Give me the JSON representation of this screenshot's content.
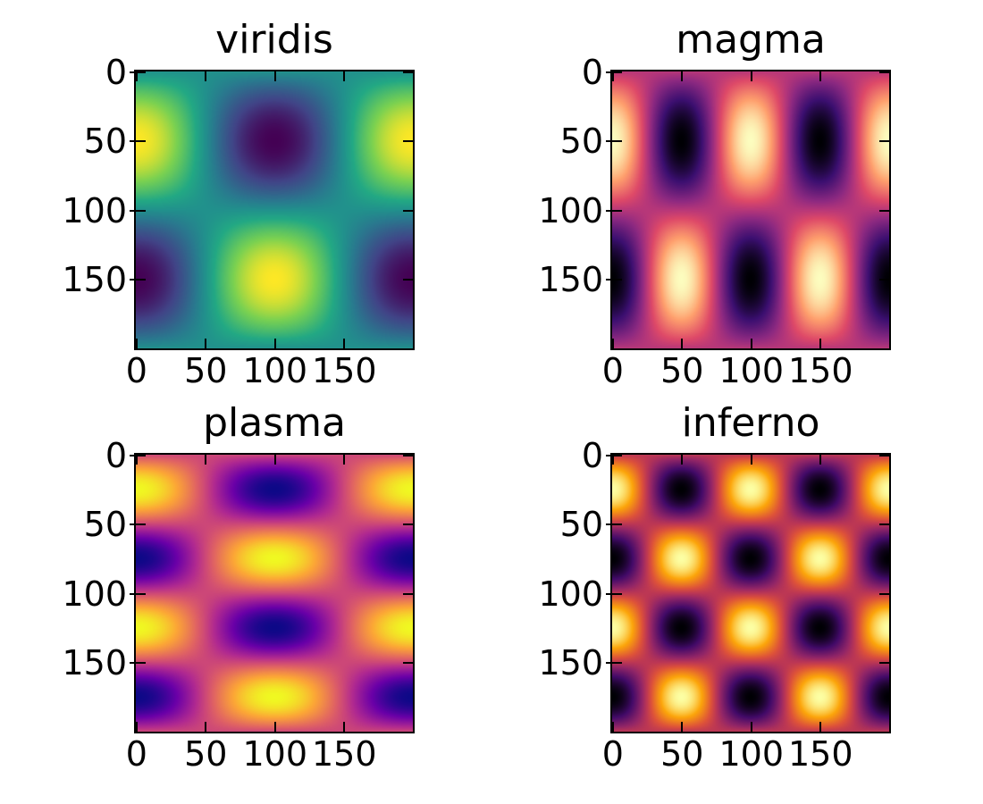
{
  "figure": {
    "background_color": "#ffffff",
    "frame_color": "#000000",
    "text_color": "#000000"
  },
  "chart_data": [
    {
      "type": "heatmap",
      "title": "viridis",
      "colormap": "viridis",
      "grid_size": [
        200,
        200
      ],
      "function": "cos(2*pi*fx*x/200) * sin(2*pi*fy*y/200)",
      "fx": 1,
      "fy": 1,
      "value_range": [
        -1,
        1
      ],
      "xlim": [
        -0.5,
        199.5
      ],
      "ylim": [
        199.5,
        -0.5
      ],
      "y_axis_inverted": true,
      "xticks": [
        0,
        50,
        100,
        150
      ],
      "yticks": [
        0,
        50,
        100,
        150
      ]
    },
    {
      "type": "heatmap",
      "title": "magma",
      "colormap": "magma",
      "grid_size": [
        200,
        200
      ],
      "function": "cos(2*pi*fx*x/200) * sin(2*pi*fy*y/200)",
      "fx": 2,
      "fy": 1,
      "value_range": [
        -1,
        1
      ],
      "xlim": [
        -0.5,
        199.5
      ],
      "ylim": [
        199.5,
        -0.5
      ],
      "y_axis_inverted": true,
      "xticks": [
        0,
        50,
        100,
        150
      ],
      "yticks": [
        0,
        50,
        100,
        150
      ]
    },
    {
      "type": "heatmap",
      "title": "plasma",
      "colormap": "plasma",
      "grid_size": [
        200,
        200
      ],
      "function": "cos(2*pi*fx*x/200) * sin(2*pi*fy*y/200)",
      "fx": 1,
      "fy": 2,
      "value_range": [
        -1,
        1
      ],
      "xlim": [
        -0.5,
        199.5
      ],
      "ylim": [
        199.5,
        -0.5
      ],
      "y_axis_inverted": true,
      "xticks": [
        0,
        50,
        100,
        150
      ],
      "yticks": [
        0,
        50,
        100,
        150
      ]
    },
    {
      "type": "heatmap",
      "title": "inferno",
      "colormap": "inferno",
      "grid_size": [
        200,
        200
      ],
      "function": "cos(2*pi*fx*x/200) * sin(2*pi*fy*y/200)",
      "fx": 2,
      "fy": 2,
      "value_range": [
        -1,
        1
      ],
      "xlim": [
        -0.5,
        199.5
      ],
      "ylim": [
        199.5,
        -0.5
      ],
      "y_axis_inverted": true,
      "xticks": [
        0,
        50,
        100,
        150
      ],
      "yticks": [
        0,
        50,
        100,
        150
      ]
    }
  ],
  "colormaps": {
    "viridis": [
      [
        0.0,
        "#440154"
      ],
      [
        0.2,
        "#414487"
      ],
      [
        0.4,
        "#2a788e"
      ],
      [
        0.5,
        "#21918c"
      ],
      [
        0.6,
        "#22a884"
      ],
      [
        0.8,
        "#7ad151"
      ],
      [
        1.0,
        "#fde725"
      ]
    ],
    "magma": [
      [
        0.0,
        "#000004"
      ],
      [
        0.2,
        "#3b0f70"
      ],
      [
        0.4,
        "#8c2981"
      ],
      [
        0.5,
        "#b73779"
      ],
      [
        0.6,
        "#de4968"
      ],
      [
        0.8,
        "#fe9f6d"
      ],
      [
        1.0,
        "#fcfdbf"
      ]
    ],
    "plasma": [
      [
        0.0,
        "#0d0887"
      ],
      [
        0.2,
        "#6a00a8"
      ],
      [
        0.4,
        "#b12a90"
      ],
      [
        0.5,
        "#cc4778"
      ],
      [
        0.6,
        "#e16462"
      ],
      [
        0.8,
        "#fca636"
      ],
      [
        1.0,
        "#f0f921"
      ]
    ],
    "inferno": [
      [
        0.0,
        "#000004"
      ],
      [
        0.2,
        "#420a68"
      ],
      [
        0.4,
        "#932667"
      ],
      [
        0.5,
        "#bc3754"
      ],
      [
        0.6,
        "#dd513a"
      ],
      [
        0.8,
        "#fca50a"
      ],
      [
        1.0,
        "#fcffa4"
      ]
    ]
  }
}
